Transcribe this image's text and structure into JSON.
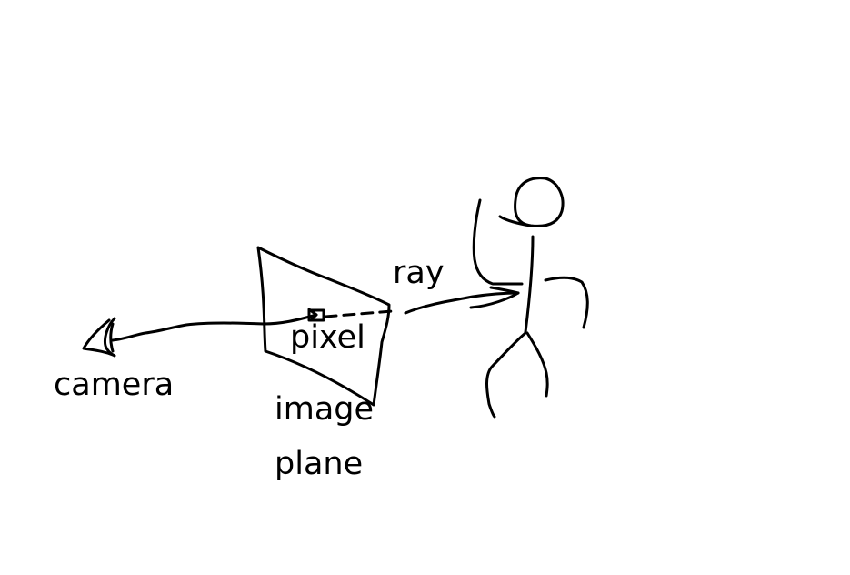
{
  "labels": {
    "camera": "camera",
    "pixel": "pixel",
    "image_line1": "image",
    "image_line2": "plane",
    "ray": "ray"
  },
  "colors": {
    "ink": "#000000",
    "background": "#ffffff"
  }
}
